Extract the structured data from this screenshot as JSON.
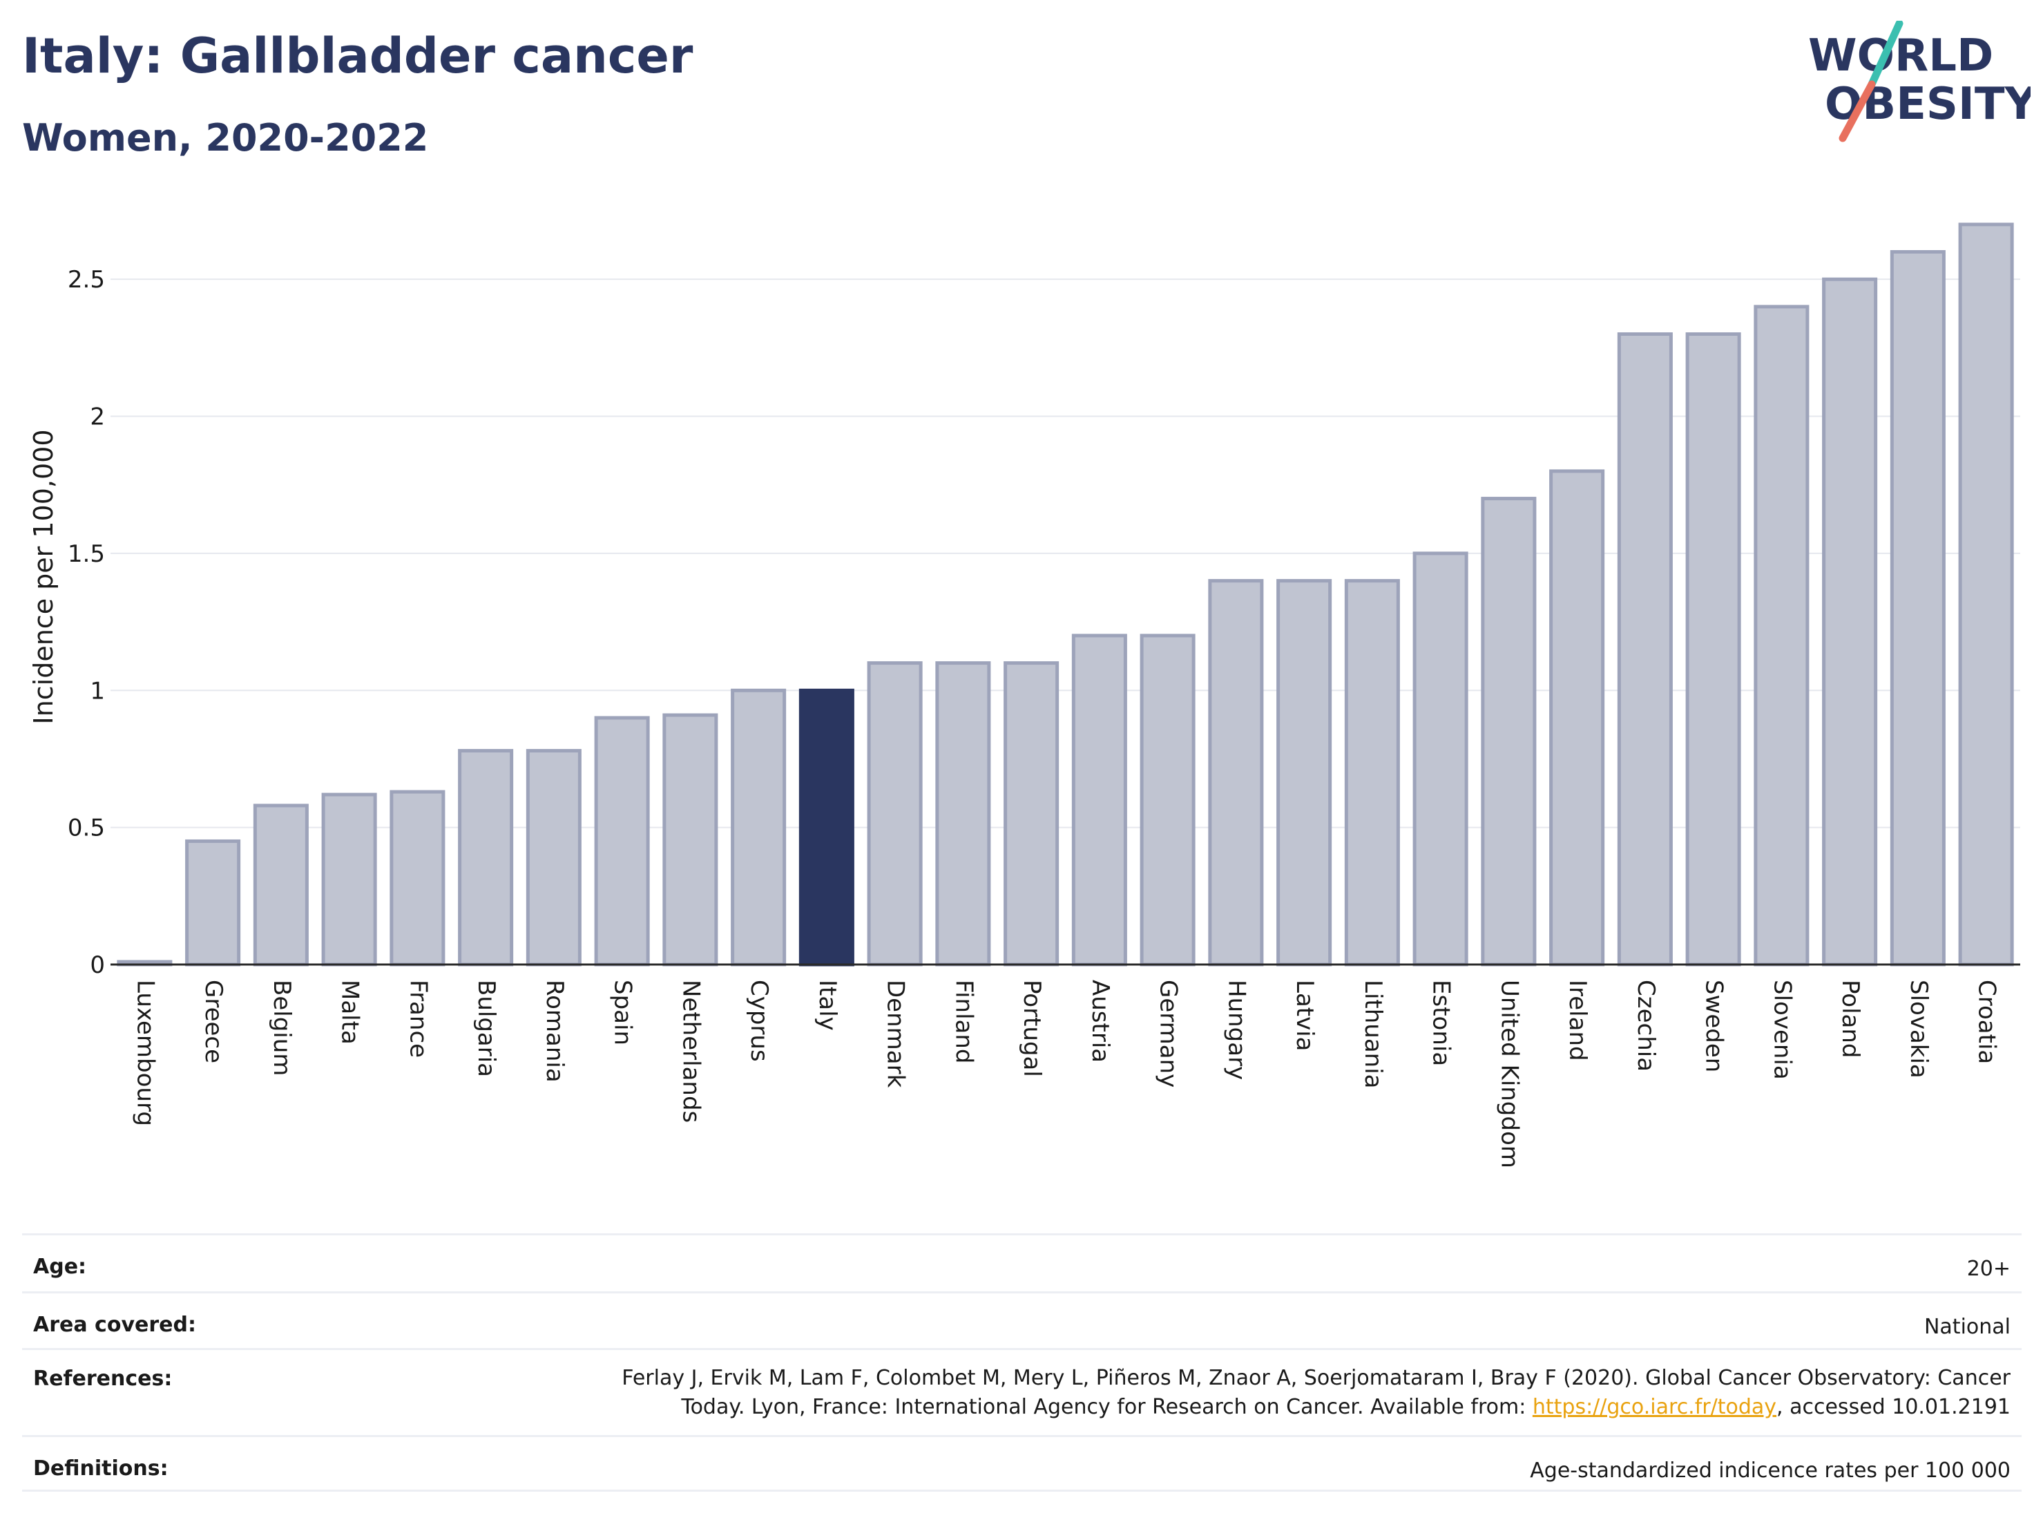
{
  "header": {
    "title": "Italy: Gallbladder cancer",
    "subtitle": "Women, 2020-2022",
    "logo_line1": "WORLD",
    "logo_line2": "OBESITY"
  },
  "colors": {
    "navy": "#2a3660",
    "bar_fill": "#c0c4d1",
    "bar_stroke": "#9da3ba",
    "logo_teal": "#3bbfb0",
    "logo_coral": "#e8705e",
    "link": "#e9a20f"
  },
  "chart_data": {
    "type": "bar",
    "ylabel": "Incidence per 100,000",
    "ylim": [
      0,
      2.75
    ],
    "yticks": [
      0,
      0.5,
      1,
      1.5,
      2,
      2.5
    ],
    "ytick_labels": [
      "0",
      "0.5",
      "1",
      "1.5",
      "2",
      "2.5"
    ],
    "grid": true,
    "highlight": "Italy",
    "categories": [
      "Luxembourg",
      "Greece",
      "Belgium",
      "Malta",
      "France",
      "Bulgaria",
      "Romania",
      "Spain",
      "Netherlands",
      "Cyprus",
      "Italy",
      "Denmark",
      "Finland",
      "Portugal",
      "Austria",
      "Germany",
      "Hungary",
      "Latvia",
      "Lithuania",
      "Estonia",
      "United Kingdom",
      "Ireland",
      "Czechia",
      "Sweden",
      "Slovenia",
      "Poland",
      "Slovakia",
      "Croatia"
    ],
    "values": [
      0.01,
      0.45,
      0.58,
      0.62,
      0.63,
      0.78,
      0.78,
      0.9,
      0.91,
      1.0,
      1.0,
      1.1,
      1.1,
      1.1,
      1.2,
      1.2,
      1.4,
      1.4,
      1.4,
      1.5,
      1.7,
      1.8,
      2.3,
      2.3,
      2.4,
      2.5,
      2.6,
      2.7
    ]
  },
  "info": {
    "age_label": "Age:",
    "age_value": "20+",
    "area_label": "Area covered:",
    "area_value": "National",
    "references_label": "References:",
    "references_line1": "Ferlay J, Ervik M, Lam F, Colombet M, Mery L, Piñeros M, Znaor A, Soerjomataram I, Bray F (2020). Global Cancer Observatory: Cancer",
    "references_line2_prefix": "Today. Lyon, France: International Agency for Research on Cancer. Available from: ",
    "references_link": "https://gco.iarc.fr/today",
    "references_line2_suffix": ", accessed 10.01.2191",
    "definitions_label": "Definitions:",
    "definitions_value": "Age-standardized indicence rates per 100 000"
  }
}
